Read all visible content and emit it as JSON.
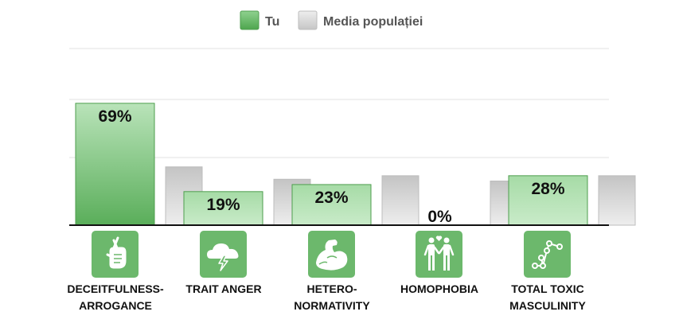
{
  "chart_data": {
    "type": "bar",
    "legend": [
      {
        "name": "Tu",
        "color": "#5cb85c"
      },
      {
        "name": "Media populației",
        "color": "#cfcfcf"
      }
    ],
    "categories": [
      {
        "lines": [
          "DECEITFULNESS-",
          "ARROGANCE"
        ],
        "icon": "fingers-crossed-icon"
      },
      {
        "lines": [
          "TRAIT ANGER"
        ],
        "icon": "storm-cloud-icon"
      },
      {
        "lines": [
          "HETERO-",
          "NORMATIVITY"
        ],
        "icon": "flexed-arm-icon"
      },
      {
        "lines": [
          "HOMOPHOBIA"
        ],
        "icon": "couple-heart-icon"
      },
      {
        "lines": [
          "TOTAL TOXIC",
          "MASCULINITY"
        ],
        "icon": "connected-dots-icon"
      }
    ],
    "series": [
      {
        "name": "Tu",
        "values": [
          69,
          19,
          23,
          0,
          28
        ],
        "labels": [
          "69%",
          "19%",
          "23%",
          "0%",
          "28%"
        ]
      },
      {
        "name": "Media populației",
        "values": [
          33,
          26,
          28,
          25,
          28
        ]
      }
    ],
    "ylim": [
      0,
      100
    ],
    "grid": true,
    "legend_position": "top-center",
    "colors": {
      "green_dark": "#5aae5a",
      "green_light": "#b6e2b6",
      "gray_dark": "#c8c8c8",
      "gray_light": "#e6e6e6",
      "icon_bg": "#6cb86c"
    }
  }
}
